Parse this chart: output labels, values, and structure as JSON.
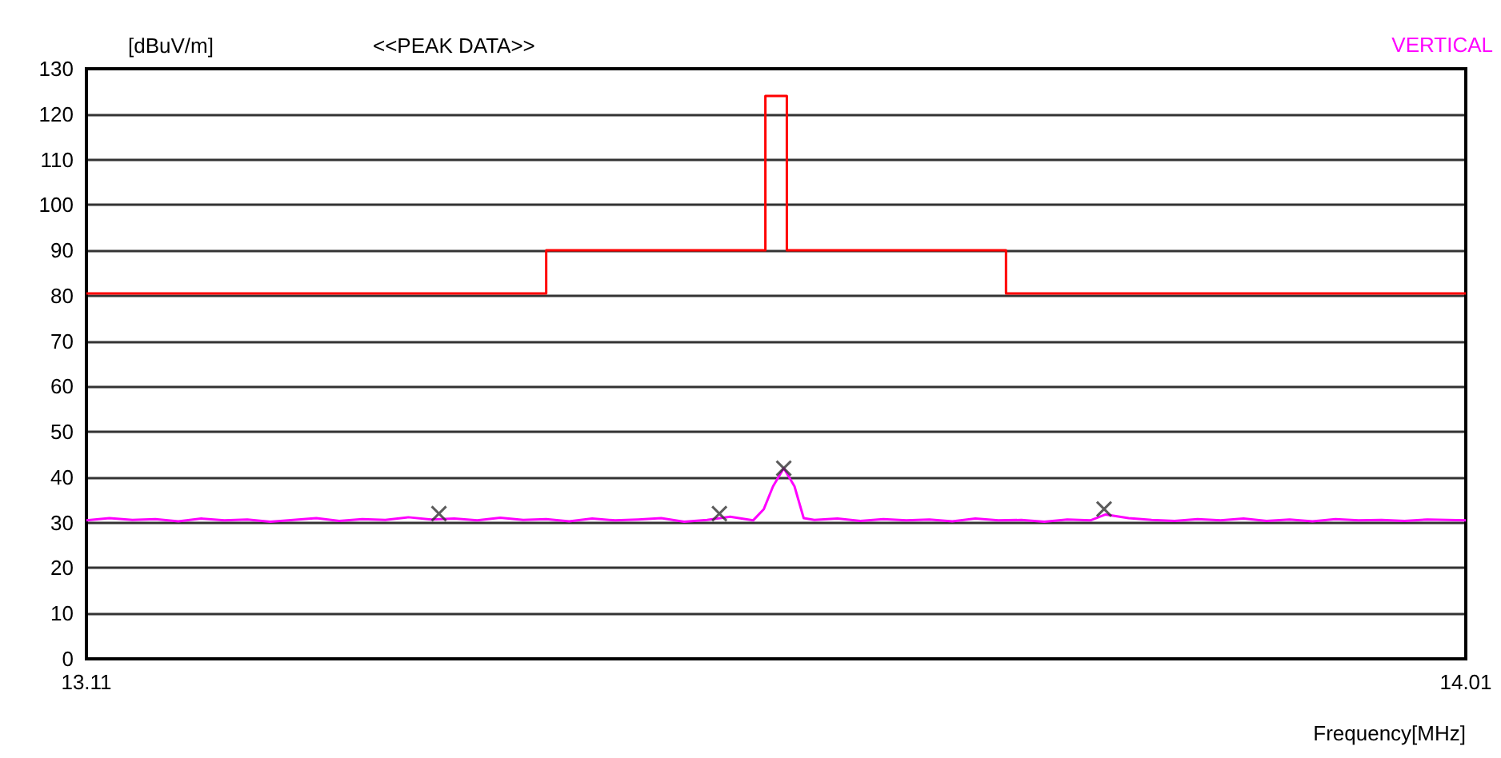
{
  "chart_data": {
    "type": "line",
    "title": "<<PEAK DATA>>",
    "xlabel": "Frequency[MHz]",
    "ylabel": "[dBuV/m]",
    "xlim": [
      13.11,
      14.01
    ],
    "xticks": [
      13.11,
      14.01
    ],
    "ylim": [
      0,
      130
    ],
    "yticks": [
      0,
      10,
      20,
      30,
      40,
      50,
      60,
      70,
      80,
      90,
      100,
      110,
      120,
      130
    ],
    "grid": "y",
    "legend": "top right",
    "series": [
      {
        "type": "step",
        "color": "#ff0000",
        "marker": "none",
        "x": [
          13.11,
          13.41,
          13.553,
          13.567,
          13.71,
          14.01
        ],
        "values": [
          80.5,
          90,
          124,
          90,
          80.5,
          80.5
        ]
      },
      {
        "type": "line",
        "name": "VERTICAL",
        "color": "#ff00ff",
        "marker": "none",
        "x": [
          13.11,
          13.125,
          13.14,
          13.155,
          13.17,
          13.185,
          13.2,
          13.215,
          13.23,
          13.245,
          13.26,
          13.275,
          13.29,
          13.305,
          13.32,
          13.335,
          13.35,
          13.365,
          13.38,
          13.395,
          13.41,
          13.425,
          13.44,
          13.455,
          13.47,
          13.485,
          13.5,
          13.515,
          13.53,
          13.545,
          13.552,
          13.558,
          13.565,
          13.572,
          13.578,
          13.585,
          13.6,
          13.615,
          13.63,
          13.645,
          13.66,
          13.675,
          13.69,
          13.705,
          13.72,
          13.735,
          13.75,
          13.765,
          13.775,
          13.79,
          13.805,
          13.82,
          13.835,
          13.85,
          13.865,
          13.88,
          13.895,
          13.91,
          13.925,
          13.94,
          13.955,
          13.97,
          13.985,
          14.01
        ],
        "values": [
          30.5,
          31,
          30.6,
          30.8,
          30.3,
          30.9,
          30.5,
          30.7,
          30.2,
          30.6,
          31,
          30.4,
          30.8,
          30.6,
          31.2,
          30.7,
          30.9,
          30.5,
          31.1,
          30.6,
          30.8,
          30.3,
          30.9,
          30.5,
          30.7,
          31,
          30.2,
          30.6,
          31.3,
          30.5,
          33,
          38,
          42,
          38,
          31,
          30.6,
          30.9,
          30.4,
          30.8,
          30.5,
          30.7,
          30.3,
          30.9,
          30.5,
          30.6,
          30.2,
          30.7,
          30.5,
          31.8,
          31,
          30.6,
          30.4,
          30.8,
          30.5,
          30.9,
          30.4,
          30.7,
          30.3,
          30.8,
          30.5,
          30.6,
          30.4,
          30.7,
          30.5
        ]
      },
      {
        "type": "scatter",
        "color": "#333333",
        "marker": "cross",
        "x": [
          13.34,
          13.523,
          13.565,
          13.774
        ],
        "values": [
          32,
          32,
          42,
          33
        ]
      }
    ]
  }
}
